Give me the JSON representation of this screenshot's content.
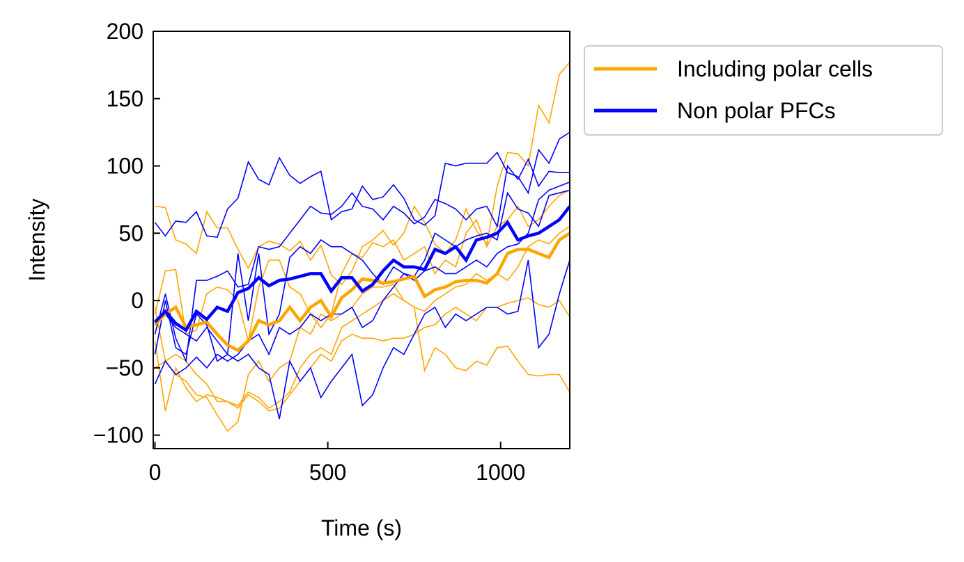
{
  "chart_data": {
    "type": "line",
    "title": "",
    "xlabel": "Time (s)",
    "ylabel": "Intensity",
    "xlim": [
      -5,
      1200
    ],
    "ylim": [
      -110,
      200
    ],
    "xticks": [
      0,
      500,
      1000
    ],
    "xtick_labels": [
      "0",
      "500",
      "1000"
    ],
    "yticks": [
      -100,
      -50,
      0,
      50,
      100,
      150,
      200
    ],
    "ytick_labels": [
      "−100",
      "−50",
      "0",
      "50",
      "100",
      "150",
      "200"
    ],
    "legend_position": "outside-right-top",
    "legend": [
      {
        "label": "Including polar cells",
        "color": "#FFA500"
      },
      {
        "label": "Non polar PFCs",
        "color": "#0000FF"
      }
    ],
    "colors": {
      "polar": "#FFA500",
      "nonpolar": "#0000FF"
    },
    "x": [
      0,
      30,
      60,
      90,
      120,
      150,
      180,
      210,
      240,
      270,
      300,
      330,
      360,
      390,
      420,
      450,
      480,
      510,
      540,
      570,
      600,
      630,
      660,
      690,
      720,
      750,
      780,
      810,
      840,
      870,
      900,
      930,
      960,
      990,
      1020,
      1050,
      1080,
      1110,
      1140,
      1170,
      1200
    ],
    "series": [
      {
        "name": "Including polar cells",
        "group": "polar",
        "kind": "mean",
        "values": [
          -18,
          -10,
          -5,
          -20,
          -18,
          -16,
          -25,
          -33,
          -37,
          -30,
          -15,
          -18,
          -15,
          -5,
          -15,
          -5,
          0,
          -12,
          2,
          8,
          16,
          15,
          13,
          14,
          16,
          18,
          3,
          8,
          10,
          14,
          15,
          15,
          13,
          20,
          35,
          38,
          38,
          35,
          32,
          45,
          50
        ]
      },
      {
        "name": "Including polar cells",
        "group": "polar",
        "kind": "individual",
        "values": [
          70,
          69,
          45,
          42,
          35,
          66,
          54,
          54,
          38,
          24,
          40,
          44,
          42,
          37,
          44,
          30,
          41,
          19,
          12,
          22,
          40,
          45,
          52,
          41,
          50,
          70,
          58,
          42,
          35,
          45,
          68,
          52,
          42,
          85,
          110,
          109,
          100,
          145,
          132,
          168,
          177
        ]
      },
      {
        "name": "Including polar cells",
        "group": "polar",
        "kind": "individual",
        "values": [
          -10,
          22,
          23,
          -25,
          -22,
          5,
          10,
          8,
          0,
          -30,
          10,
          30,
          30,
          10,
          5,
          -10,
          -20,
          -10,
          20,
          35,
          32,
          43,
          40,
          45,
          30,
          35,
          40,
          20,
          30,
          25,
          50,
          60,
          40,
          55,
          60,
          70,
          55,
          60,
          70,
          78,
          82
        ]
      },
      {
        "name": "Including polar cells",
        "group": "polar",
        "kind": "individual",
        "values": [
          -30,
          -82,
          -50,
          -65,
          -75,
          -70,
          -72,
          -75,
          -80,
          -70,
          -75,
          -82,
          -80,
          -70,
          -60,
          -50,
          -40,
          -45,
          -30,
          -25,
          -28,
          -28,
          -30,
          -28,
          -28,
          -25,
          -20,
          -18,
          -10,
          -5,
          -10,
          -15,
          -5,
          -5,
          -2,
          0,
          2,
          -3,
          -5,
          0,
          -12
        ]
      },
      {
        "name": "Including polar cells",
        "group": "polar",
        "kind": "individual",
        "values": [
          -50,
          -45,
          -40,
          -45,
          -55,
          -62,
          -75,
          -75,
          -78,
          -68,
          -72,
          -80,
          -75,
          -68,
          -50,
          -40,
          -35,
          -40,
          -20,
          -15,
          -10,
          -5,
          0,
          5,
          0,
          -5,
          -52,
          -35,
          -40,
          -50,
          -52,
          -45,
          -48,
          -35,
          -34,
          -45,
          -55,
          -56,
          -55,
          -55,
          -68
        ]
      },
      {
        "name": "Including polar cells",
        "group": "polar",
        "kind": "individual",
        "values": [
          -5,
          -45,
          -55,
          -60,
          -70,
          -72,
          -85,
          -97,
          -90,
          -55,
          -45,
          -60,
          -50,
          -45,
          -20,
          -25,
          -10,
          -15,
          -10,
          -5,
          5,
          10,
          10,
          12,
          0,
          -5,
          -8,
          0,
          5,
          10,
          12,
          20,
          15,
          20,
          15,
          25,
          40,
          45,
          42,
          50,
          55
        ]
      },
      {
        "name": "Non polar PFCs",
        "group": "nonpolar",
        "kind": "mean",
        "values": [
          -16,
          -8,
          -17,
          -22,
          -8,
          -14,
          -5,
          -8,
          6,
          9,
          17,
          11,
          15,
          16,
          18,
          20,
          20,
          7,
          17,
          17,
          7,
          12,
          22,
          30,
          25,
          25,
          23,
          38,
          35,
          40,
          30,
          45,
          47,
          50,
          58,
          45,
          48,
          50,
          55,
          60,
          70
        ]
      },
      {
        "name": "Non polar PFCs",
        "group": "nonpolar",
        "kind": "individual",
        "values": [
          58,
          48,
          59,
          58,
          66,
          48,
          47,
          68,
          76,
          103,
          90,
          86,
          106,
          93,
          87,
          92,
          96,
          60,
          66,
          68,
          85,
          75,
          77,
          86,
          76,
          60,
          56,
          63,
          102,
          100,
          102,
          102,
          102,
          110,
          95,
          92,
          80,
          112,
          102,
          120,
          125
        ]
      },
      {
        "name": "Non polar PFCs",
        "group": "nonpolar",
        "kind": "individual",
        "values": [
          -25,
          5,
          -28,
          -45,
          15,
          15,
          18,
          22,
          10,
          12,
          40,
          38,
          40,
          50,
          60,
          70,
          65,
          64,
          70,
          80,
          70,
          68,
          60,
          70,
          65,
          57,
          62,
          75,
          72,
          68,
          60,
          68,
          70,
          55,
          100,
          90,
          105,
          85,
          96,
          95,
          95
        ]
      },
      {
        "name": "Non polar PFCs",
        "group": "nonpolar",
        "kind": "individual",
        "values": [
          -40,
          0,
          -35,
          -40,
          -10,
          -18,
          -45,
          -40,
          35,
          -15,
          35,
          -25,
          -10,
          32,
          40,
          35,
          45,
          40,
          40,
          35,
          30,
          20,
          12,
          25,
          20,
          18,
          30,
          50,
          45,
          40,
          45,
          48,
          50,
          45,
          80,
          68,
          65,
          55,
          78,
          80,
          82
        ]
      },
      {
        "name": "Non polar PFCs",
        "group": "nonpolar",
        "kind": "individual",
        "values": [
          -62,
          -45,
          -55,
          -50,
          -42,
          -50,
          -40,
          -45,
          -40,
          -30,
          -25,
          -40,
          -20,
          -25,
          -20,
          -10,
          -15,
          -10,
          -10,
          -5,
          -20,
          -15,
          0,
          10,
          20,
          15,
          22,
          25,
          20,
          20,
          25,
          30,
          25,
          35,
          40,
          42,
          50,
          75,
          82,
          85,
          88
        ]
      },
      {
        "name": "Non polar PFCs",
        "group": "nonpolar",
        "kind": "individual",
        "values": [
          -15,
          -10,
          -20,
          -25,
          -30,
          -20,
          -30,
          -40,
          -45,
          -40,
          -50,
          -55,
          -88,
          -45,
          -60,
          -50,
          -72,
          -60,
          -50,
          -40,
          -78,
          -70,
          -50,
          -35,
          -40,
          -25,
          -10,
          -5,
          -20,
          -10,
          -15,
          -10,
          -5,
          -5,
          -10,
          -8,
          30,
          -35,
          -25,
          5,
          30
        ]
      }
    ]
  }
}
